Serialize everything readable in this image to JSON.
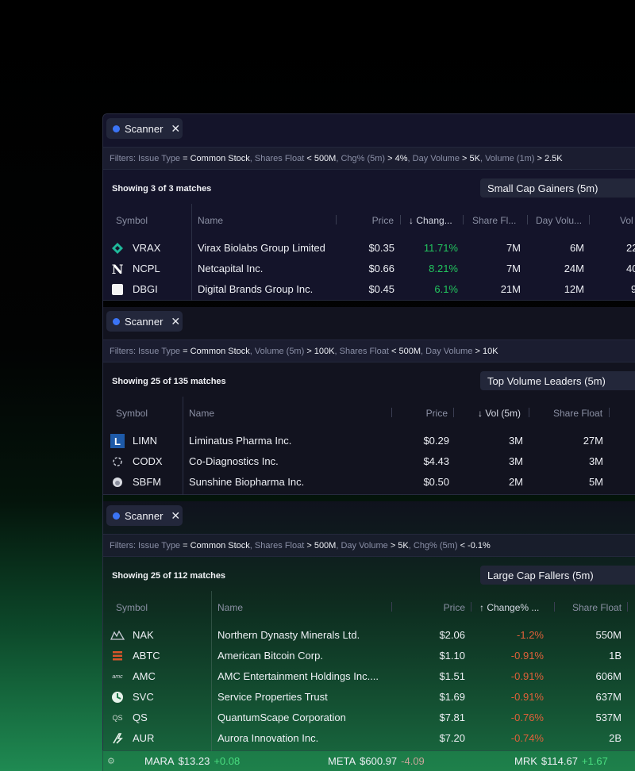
{
  "panels": [
    {
      "tab": "Scanner",
      "filters": [
        {
          "pre": "Filters:  Issue Type",
          "op": "= Common Stock"
        },
        {
          "pre": ",  Shares Float",
          "op": "< 500M"
        },
        {
          "pre": ",  Chg% (5m)",
          "op": "> 4%"
        },
        {
          "pre": ",  Day Volume",
          "op": "> 5K"
        },
        {
          "pre": ",  Volume (1m)",
          "op": "> 2.5K"
        }
      ],
      "matches": "Showing 3 of 3 matches",
      "preset": "Small Cap Gainers (5m)",
      "columns": [
        "Symbol",
        "Name",
        "Price",
        "↓ Chang...",
        "Share Fl...",
        "Day Volu...",
        "Vol"
      ],
      "rows": [
        {
          "icon": "virax-logo",
          "sym": "VRAX",
          "name": "Virax Biolabs Group Limited",
          "price": "$0.35",
          "chg": "11.71%",
          "float": "7M",
          "dayvol": "6M",
          "vol": "22"
        },
        {
          "icon": "netcapital-logo",
          "sym": "NCPL",
          "name": "Netcapital Inc.",
          "price": "$0.66",
          "chg": "8.21%",
          "float": "7M",
          "dayvol": "24M",
          "vol": "40"
        },
        {
          "icon": "digital-brands-logo",
          "sym": "DBGI",
          "name": "Digital Brands Group Inc.",
          "price": "$0.45",
          "chg": "6.1%",
          "float": "21M",
          "dayvol": "12M",
          "vol": "9"
        }
      ]
    },
    {
      "tab": "Scanner",
      "filters": [
        {
          "pre": "Filters:  Issue Type",
          "op": "= Common Stock"
        },
        {
          "pre": ",  Volume (5m)",
          "op": "> 100K"
        },
        {
          "pre": ",  Shares Float",
          "op": "< 500M"
        },
        {
          "pre": ",  Day Volume",
          "op": "> 10K"
        }
      ],
      "matches": "Showing 25 of 135 matches",
      "preset": "Top Volume Leaders (5m)",
      "columns": [
        "Symbol",
        "Name",
        "Price",
        "↓ Vol (5m)",
        "Share Float"
      ],
      "rows": [
        {
          "icon": "liminatus-logo",
          "sym": "LIMN",
          "name": "Liminatus Pharma Inc.",
          "price": "$0.29",
          "vol": "3M",
          "float": "27M"
        },
        {
          "icon": "co-diagnostics-logo",
          "sym": "CODX",
          "name": "Co-Diagnostics Inc.",
          "price": "$4.43",
          "vol": "3M",
          "float": "3M"
        },
        {
          "icon": "sunshine-biopharma-logo",
          "sym": "SBFM",
          "name": "Sunshine Biopharma Inc.",
          "price": "$0.50",
          "vol": "2M",
          "float": "5M"
        }
      ]
    },
    {
      "tab": "Scanner",
      "filters": [
        {
          "pre": "Filters:  Issue Type",
          "op": "= Common Stock"
        },
        {
          "pre": ",  Shares Float",
          "op": "> 500M"
        },
        {
          "pre": ",  Day Volume",
          "op": "> 5K"
        },
        {
          "pre": ",  Chg% (5m)",
          "op": "< -0.1%"
        }
      ],
      "matches": "Showing 25 of 112 matches",
      "preset": "Large Cap Fallers (5m)",
      "columns": [
        "Symbol",
        "Name",
        "Price",
        "↑ Change% ...",
        "Share Float"
      ],
      "rows": [
        {
          "icon": "northern-dynasty-logo",
          "sym": "NAK",
          "name": "Northern Dynasty Minerals Ltd.",
          "price": "$2.06",
          "chg": "-1.2%",
          "float": "550M"
        },
        {
          "icon": "american-bitcoin-logo",
          "sym": "ABTC",
          "name": "American Bitcoin Corp.",
          "price": "$1.10",
          "chg": "-0.91%",
          "float": "1B"
        },
        {
          "icon": "amc-logo",
          "sym": "AMC",
          "name": "AMC Entertainment Holdings Inc....",
          "price": "$1.51",
          "chg": "-0.91%",
          "float": "606M"
        },
        {
          "icon": "service-properties-logo",
          "sym": "SVC",
          "name": "Service Properties Trust",
          "price": "$1.69",
          "chg": "-0.91%",
          "float": "637M"
        },
        {
          "icon": "quantumscape-logo",
          "sym": "QS",
          "name": "QuantumScape Corporation",
          "price": "$7.81",
          "chg": "-0.76%",
          "float": "537M"
        },
        {
          "icon": "aurora-logo",
          "sym": "AUR",
          "name": "Aurora Innovation Inc.",
          "price": "$7.20",
          "chg": "-0.74%",
          "float": "2B"
        }
      ]
    }
  ],
  "ticker": [
    {
      "sym": "MARA",
      "price": "$13.23",
      "chg": "+0.08",
      "dir": "up"
    },
    {
      "sym": "META",
      "price": "$600.97",
      "chg": "-4.09",
      "dir": "down"
    },
    {
      "sym": "MRK",
      "price": "$114.67",
      "chg": "+1.67",
      "dir": "up"
    }
  ],
  "colors": {
    "accent": "#3b74f5",
    "gain": "#22c55e",
    "loss": "#e0603a"
  }
}
